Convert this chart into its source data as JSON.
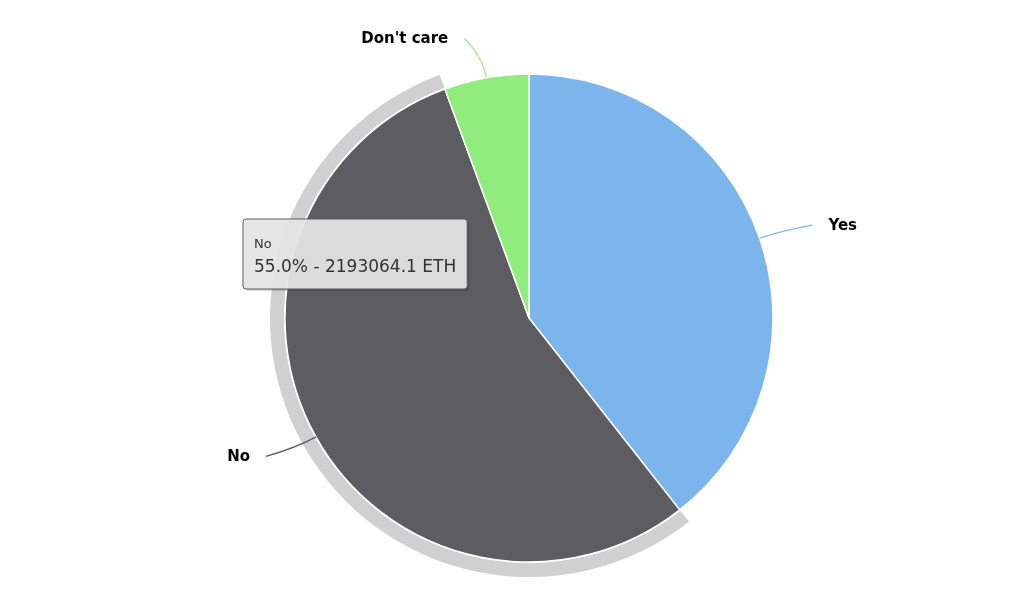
{
  "chart_data": {
    "type": "pie",
    "categories": [
      "Yes",
      "No",
      "Don't care"
    ],
    "values": [
      39.4,
      55.0,
      5.6
    ],
    "colors": [
      "#7cb5ec",
      "#5c5c61",
      "#90ed7d"
    ],
    "annotations": [
      {
        "text": "No",
        "x": "No"
      },
      {
        "text": "55.0% - 2193064.1 ETH",
        "x": "No"
      }
    ]
  }
}
